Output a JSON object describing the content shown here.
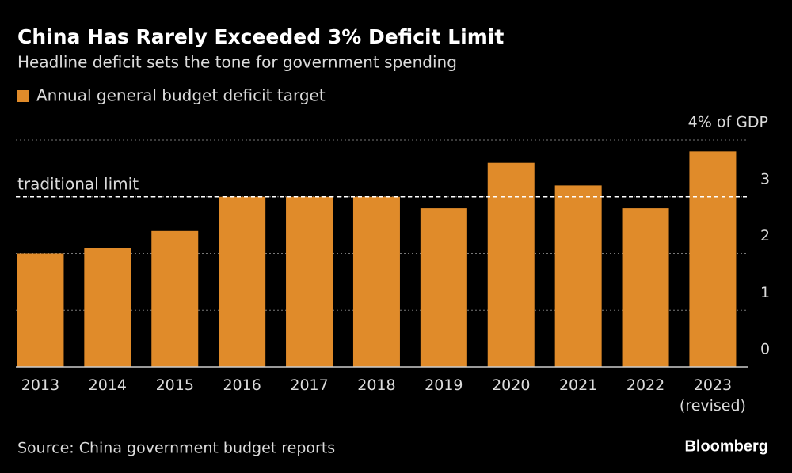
{
  "chart_data": {
    "type": "bar",
    "title": "China Has Rarely Exceeded 3% Deficit Limit",
    "subtitle": "Headline deficit sets the tone for government spending",
    "categories": [
      "2013",
      "2014",
      "2015",
      "2016",
      "2017",
      "2018",
      "2019",
      "2020",
      "2021",
      "2022",
      "2023 (revised)"
    ],
    "series": [
      {
        "name": "Annual general budget deficit target",
        "color": "#e08b2a",
        "values": [
          2.0,
          2.1,
          2.4,
          3.0,
          3.0,
          3.0,
          2.8,
          3.6,
          3.2,
          2.8,
          3.8
        ]
      }
    ],
    "ylim": [
      0,
      4
    ],
    "yticks": [
      0,
      1,
      2,
      3,
      {
        "value": 4,
        "label": "4% of GDP"
      }
    ],
    "grid": true,
    "reference_line": {
      "label": "traditional limit",
      "value": 3
    },
    "source": "Source: China government budget reports",
    "brand": "Bloomberg"
  }
}
